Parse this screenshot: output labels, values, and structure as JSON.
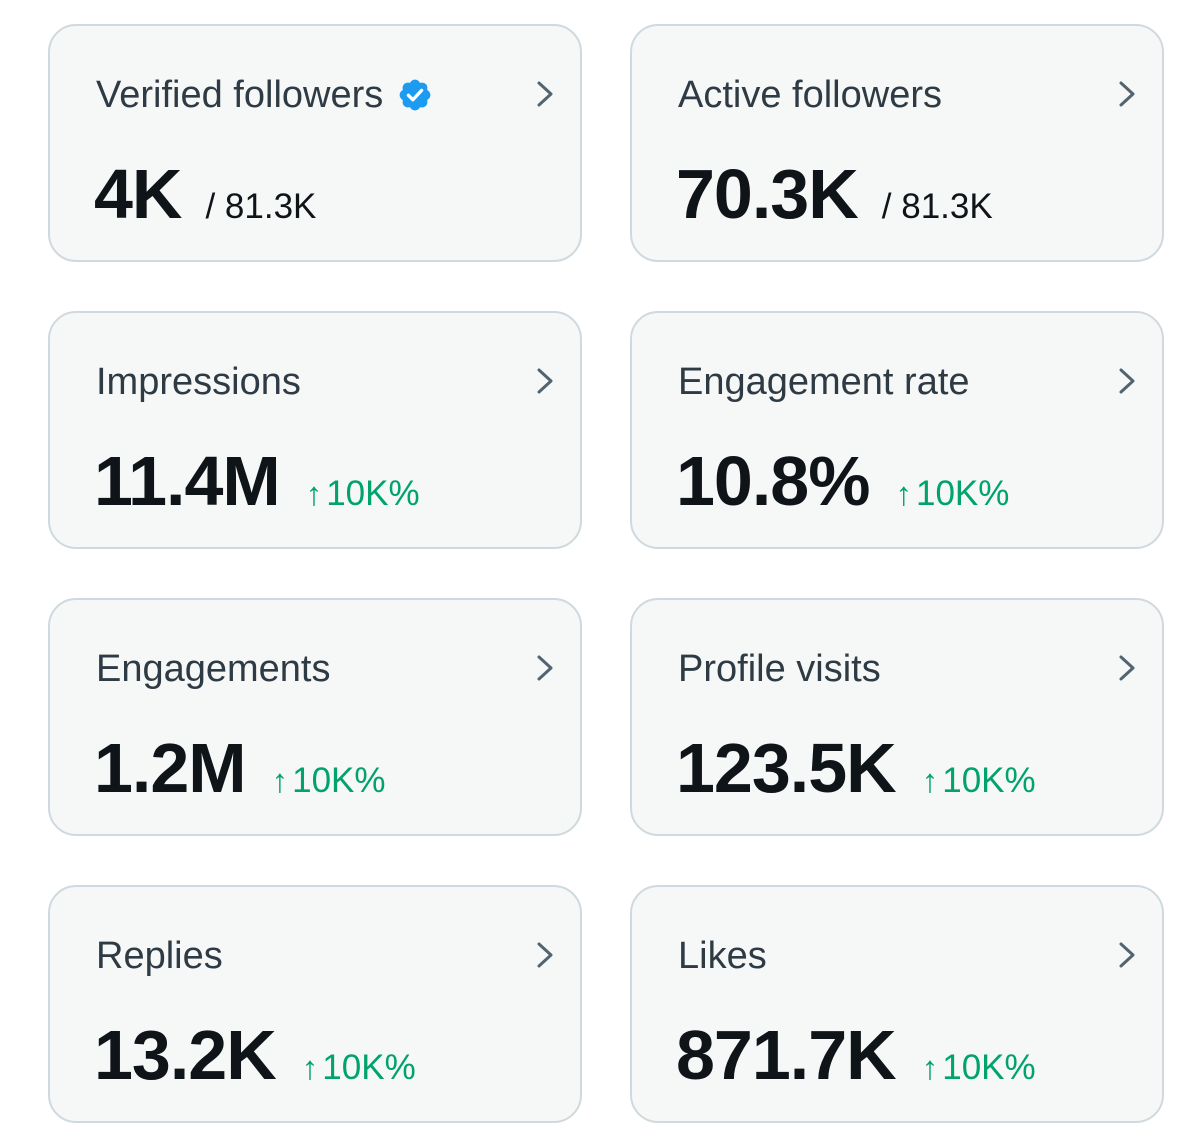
{
  "colors": {
    "card_background": "#f6f7f7",
    "card_border": "#cfd9de",
    "title_text": "#2f3b44",
    "value_text": "#0f1419",
    "change_positive": "#00a36b",
    "verified_badge": "#1d9bf0",
    "chevron": "#536471"
  },
  "icons": {
    "verified": "verified-badge-icon",
    "chevron": "chevron-right-icon",
    "change": "up-arrow-icon"
  },
  "cards": [
    {
      "title": "Verified followers",
      "value": "4K",
      "total": "/ 81.3K"
    },
    {
      "title": "Active followers",
      "value": "70.3K",
      "total": "/ 81.3K"
    },
    {
      "title": "Impressions",
      "value": "11.4M",
      "change": "10K%"
    },
    {
      "title": "Engagement rate",
      "value": "10.8%",
      "change": "10K%"
    },
    {
      "title": "Engagements",
      "value": "1.2M",
      "change": "10K%"
    },
    {
      "title": "Profile visits",
      "value": "123.5K",
      "change": "10K%"
    },
    {
      "title": "Replies",
      "value": "13.2K",
      "change": "10K%"
    },
    {
      "title": "Likes",
      "value": "871.7K",
      "change": "10K%"
    }
  ]
}
